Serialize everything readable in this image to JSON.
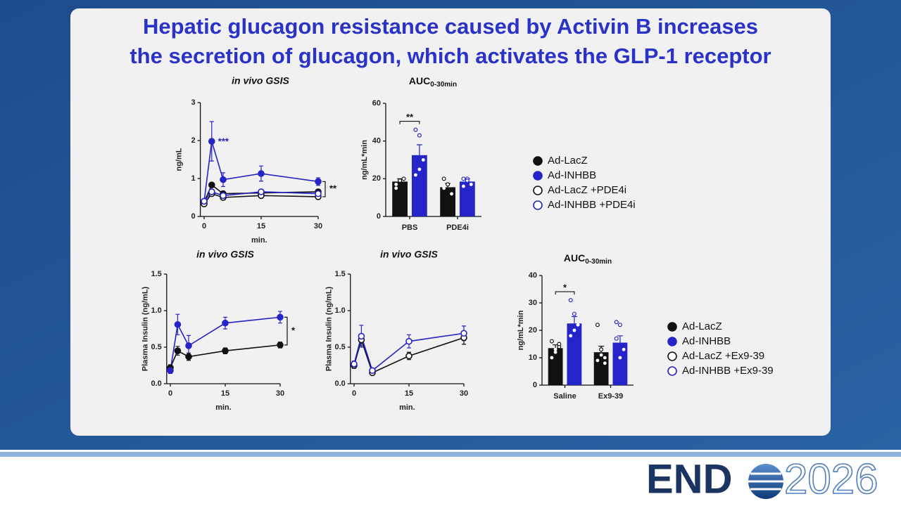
{
  "title": [
    "Hepatic glucagon resistance caused by Activin B increases",
    "the secretion of glucagon, which activates the GLP-1 receptor"
  ],
  "footer": {
    "logo_left": "END",
    "logo_right": "2026"
  },
  "chart_data": [
    {
      "type": "line",
      "title": "in vivo GSIS",
      "x_label": "min.",
      "y_label": "ng/mL",
      "x": [
        0,
        2,
        5,
        15,
        30
      ],
      "xlim": [
        -1,
        30
      ],
      "xticks": [
        0,
        15,
        30
      ],
      "ylim": [
        0,
        3
      ],
      "yticks": [
        0,
        1,
        2,
        3
      ],
      "peak_annotation": "***",
      "bracket_annotation": "**",
      "series": [
        {
          "name": "Ad-LacZ",
          "color": "#111111",
          "marker": "filled",
          "values": [
            0.38,
            0.83,
            0.6,
            0.62,
            0.65
          ],
          "errors": [
            0.04,
            0.05,
            0.06,
            0.05,
            0.05
          ]
        },
        {
          "name": "Ad-INHBB",
          "color": "#2424c8",
          "marker": "filled",
          "values": [
            0.4,
            1.98,
            0.97,
            1.13,
            0.92
          ],
          "errors": [
            0.05,
            0.52,
            0.18,
            0.2,
            0.1
          ]
        },
        {
          "name": "Ad-LacZ +PDE4i",
          "color": "#111111",
          "marker": "open",
          "values": [
            0.33,
            0.6,
            0.5,
            0.55,
            0.52
          ],
          "errors": [
            0.04,
            0.06,
            0.06,
            0.05,
            0.05
          ]
        },
        {
          "name": "Ad-INHBB +PDE4i",
          "color": "#2424c8",
          "marker": "open",
          "values": [
            0.4,
            0.65,
            0.55,
            0.65,
            0.6
          ],
          "errors": [
            0.04,
            0.06,
            0.06,
            0.05,
            0.05
          ]
        }
      ]
    },
    {
      "type": "bar",
      "title": "AUC",
      "title_subscript": "0-30min",
      "y_label": "ng/mL*min",
      "categories": [
        "PBS",
        "PDE4i"
      ],
      "ylim": [
        0,
        60
      ],
      "yticks": [
        0,
        20,
        40,
        60
      ],
      "bracket_annotation": "**",
      "series": [
        {
          "color": "#111111",
          "values": [
            18.5,
            15.5
          ],
          "errors": [
            1.5,
            2
          ],
          "points": [
            [
              17,
              19,
              20,
              15,
              19
            ],
            [
              20,
              17,
              12,
              15
            ]
          ]
        },
        {
          "color": "#2424c8",
          "values": [
            32.5,
            18.5
          ],
          "errors": [
            5.5,
            1.5
          ],
          "points": [
            [
              46,
              43,
              30,
              22,
              25
            ],
            [
              20,
              20,
              17,
              16,
              19
            ]
          ]
        }
      ]
    },
    {
      "type": "line",
      "title": "in vivo GSIS",
      "x_label": "min.",
      "y_label": "Plasma Insulin (ng/mL)",
      "x": [
        0,
        2,
        5,
        15,
        30
      ],
      "xlim": [
        -1,
        30
      ],
      "xticks": [
        0,
        15,
        30
      ],
      "ylim": [
        0,
        1.5
      ],
      "yticks": [
        {
          "value": 0,
          "label": "0.0"
        },
        {
          "value": 0.5,
          "label": "0.5"
        },
        {
          "value": 1,
          "label": "1.0"
        },
        {
          "value": 1.5,
          "label": "1.5"
        }
      ],
      "bracket_annotation": "*",
      "series": [
        {
          "name": "Ad-LacZ",
          "color": "#111111",
          "marker": "filled",
          "values": [
            0.22,
            0.45,
            0.37,
            0.45,
            0.53
          ],
          "errors": [
            0.04,
            0.06,
            0.05,
            0.04,
            0.04
          ]
        },
        {
          "name": "Ad-INHBB",
          "color": "#2424c8",
          "marker": "filled",
          "values": [
            0.18,
            0.81,
            0.52,
            0.83,
            0.91
          ],
          "errors": [
            0.04,
            0.14,
            0.14,
            0.08,
            0.08
          ]
        }
      ]
    },
    {
      "type": "line",
      "title": "in vivo GSIS",
      "x_label": "min.",
      "y_label": "Plasma Insulin (ng/mL)",
      "x": [
        0,
        2,
        5,
        15,
        30
      ],
      "xlim": [
        -1,
        30
      ],
      "xticks": [
        0,
        15,
        30
      ],
      "ylim": [
        0,
        1.5
      ],
      "yticks": [
        {
          "value": 0,
          "label": "0.0"
        },
        {
          "value": 0.5,
          "label": "0.5"
        },
        {
          "value": 1,
          "label": "1.0"
        },
        {
          "value": 1.5,
          "label": "1.5"
        }
      ],
      "series": [
        {
          "name": "Ad-LacZ +Ex9-39",
          "color": "#111111",
          "marker": "open",
          "values": [
            0.25,
            0.6,
            0.15,
            0.38,
            0.63
          ],
          "errors": [
            0.04,
            0.08,
            0.03,
            0.05,
            0.09
          ]
        },
        {
          "name": "Ad-INHBB +Ex9-39",
          "color": "#2424c8",
          "marker": "open",
          "values": [
            0.27,
            0.65,
            0.18,
            0.58,
            0.69
          ],
          "errors": [
            0.04,
            0.15,
            0.03,
            0.09,
            0.1
          ]
        }
      ]
    },
    {
      "type": "bar",
      "title": "AUC",
      "title_subscript": "0-30min",
      "y_label": "ng/mL*min",
      "categories": [
        "Saline",
        "Ex9-39"
      ],
      "ylim": [
        0,
        40
      ],
      "yticks": [
        0,
        10,
        20,
        30,
        40
      ],
      "bracket_annotation": "*",
      "series": [
        {
          "color": "#111111",
          "values": [
            13.5,
            12
          ],
          "errors": [
            1.2,
            2.2
          ],
          "points": [
            [
              16,
              12,
              14,
              10,
              13,
              15
            ],
            [
              22,
              13,
              10,
              9,
              11,
              8
            ]
          ]
        },
        {
          "color": "#2424c8",
          "values": [
            22.5,
            15.5
          ],
          "errors": [
            2.5,
            2.5
          ],
          "points": [
            [
              31,
              26,
              22,
              18,
              20,
              22
            ],
            [
              23,
              22,
              13,
              17,
              10
            ]
          ]
        }
      ]
    }
  ]
}
